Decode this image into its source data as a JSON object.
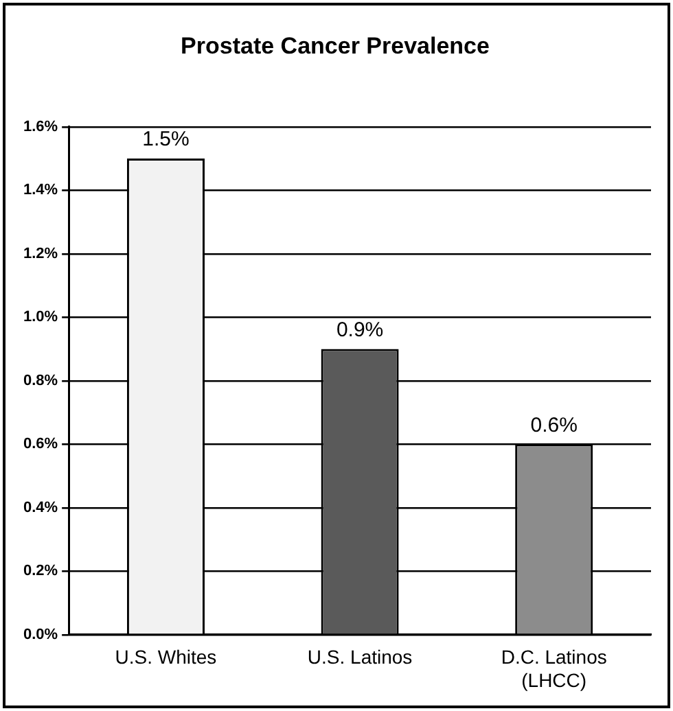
{
  "chart_data": {
    "type": "bar",
    "title": "Prostate Cancer Prevalence",
    "categories": [
      "U.S. Whites",
      "U.S. Latinos",
      "D.C. Latinos (LHCC)"
    ],
    "values": [
      1.5,
      0.9,
      0.6
    ],
    "colors": [
      "#f2f2f2",
      "#5a5a5a",
      "#8c8c8c"
    ],
    "value_labels": [
      "1.5%",
      "0.9%",
      "0.6%"
    ],
    "ylim": [
      0,
      1.6
    ],
    "yticks": [
      {
        "value": 0,
        "label": "0.0%"
      },
      {
        "value": 0.2,
        "label": "0.2%"
      },
      {
        "value": 0.4,
        "label": "0.4%"
      },
      {
        "value": 0.6,
        "label": "0.6%"
      },
      {
        "value": 0.8,
        "label": "0.8%"
      },
      {
        "value": 1.0,
        "label": "1.0%"
      },
      {
        "value": 1.2,
        "label": "1.2%"
      },
      {
        "value": 1.4,
        "label": "1.4%"
      },
      {
        "value": 1.6,
        "label": "1.6%"
      }
    ],
    "grid": "y"
  }
}
